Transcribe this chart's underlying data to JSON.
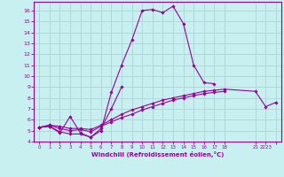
{
  "xlabel": "Windchill (Refroidissement éolien,°C)",
  "bg_color": "#c8f0f0",
  "grid_color": "#b0d8d8",
  "line_color": "#990099",
  "xlim": [
    -0.5,
    23.5
  ],
  "ylim": [
    4,
    16.8
  ],
  "xtick_positions": [
    0,
    1,
    2,
    3,
    4,
    5,
    6,
    7,
    8,
    9,
    10,
    11,
    12,
    13,
    14,
    15,
    16,
    17,
    18,
    21,
    22,
    23
  ],
  "xtick_labels": [
    "0",
    "1",
    "2",
    "3",
    "4",
    "5",
    "6",
    "7",
    "8",
    "9",
    "10",
    "11",
    "12",
    "13",
    "14",
    "15",
    "16",
    "17",
    "18",
    "21",
    "2223",
    ""
  ],
  "yticks": [
    4,
    5,
    6,
    7,
    8,
    9,
    10,
    11,
    12,
    13,
    14,
    15,
    16
  ],
  "lines": [
    {
      "x": [
        0,
        1,
        2,
        3,
        4,
        5,
        6,
        7,
        8,
        9,
        10,
        11,
        12,
        13,
        14,
        15,
        16,
        17
      ],
      "y": [
        5.3,
        5.4,
        4.8,
        6.3,
        4.8,
        4.4,
        5.0,
        8.5,
        11.0,
        13.3,
        16.0,
        16.1,
        15.8,
        16.4,
        14.8,
        11.0,
        9.4,
        9.3
      ]
    },
    {
      "x": [
        0,
        1,
        2,
        3,
        4,
        5,
        6,
        7,
        8
      ],
      "y": [
        5.3,
        5.4,
        4.9,
        4.7,
        4.7,
        4.4,
        5.2,
        7.0,
        9.0
      ]
    },
    {
      "x": [
        0,
        1,
        2,
        3,
        4,
        5,
        6,
        7,
        8,
        9,
        10,
        11,
        12,
        13,
        14,
        15,
        16,
        17,
        18
      ],
      "y": [
        5.3,
        5.5,
        5.2,
        5.0,
        5.1,
        4.9,
        5.4,
        5.8,
        6.2,
        6.5,
        6.9,
        7.2,
        7.5,
        7.8,
        8.0,
        8.2,
        8.4,
        8.5,
        8.6
      ]
    },
    {
      "x": [
        0,
        1,
        2,
        3,
        4,
        5,
        6,
        7,
        8,
        9,
        10,
        11,
        12,
        13,
        14,
        15,
        16,
        17,
        18,
        21,
        22,
        23
      ],
      "y": [
        5.3,
        5.5,
        5.4,
        5.2,
        5.2,
        5.1,
        5.5,
        6.0,
        6.5,
        6.9,
        7.2,
        7.5,
        7.8,
        8.0,
        8.2,
        8.4,
        8.6,
        8.7,
        8.8,
        8.6,
        7.2,
        7.6
      ]
    }
  ]
}
